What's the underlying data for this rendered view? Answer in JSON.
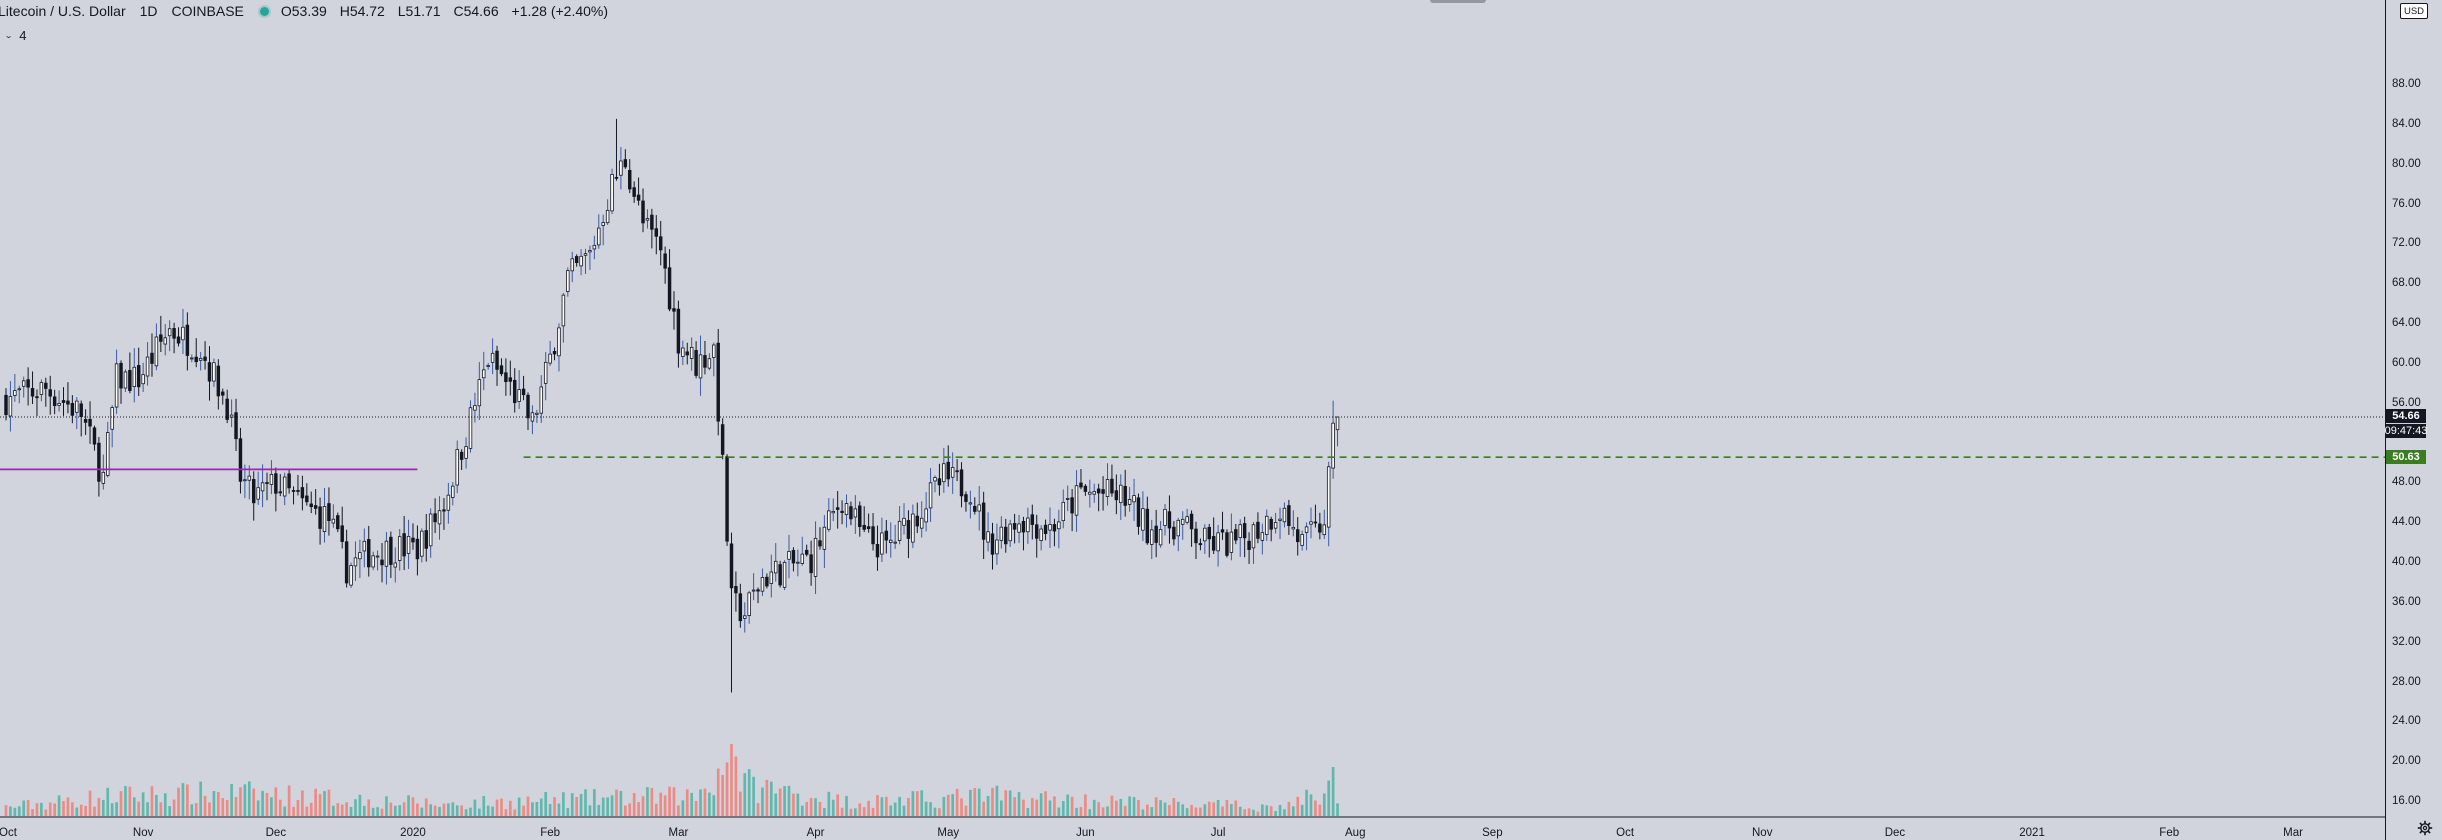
{
  "header": {
    "symbol_title": "Litecoin / U.S. Dollar",
    "interval": "1D",
    "exchange": "COINBASE",
    "open": "O53.39",
    "high": "H54.72",
    "low": "L51.71",
    "close": "C54.66",
    "change": "+1.28 (+2.40%)",
    "indicator_count": "4",
    "status_color": "#26a69a"
  },
  "axis": {
    "currency": "USD",
    "price_ticks": [
      "88.00",
      "84.00",
      "80.00",
      "76.00",
      "72.00",
      "68.00",
      "64.00",
      "60.00",
      "56.00",
      "48.00",
      "44.00",
      "40.00",
      "36.00",
      "32.00",
      "28.00",
      "24.00",
      "20.00",
      "16.00"
    ],
    "last_price": "54.66",
    "countdown": "09:47:43",
    "level_price": "50.63",
    "time_labels": [
      "Oct",
      "Nov",
      "Dec",
      "2020",
      "Feb",
      "Mar",
      "Apr",
      "May",
      "Jun",
      "Jul",
      "Aug",
      "Sep",
      "Oct",
      "Nov",
      "Dec",
      "2021",
      "Feb",
      "Mar"
    ]
  },
  "chart_data": {
    "type": "candlestick",
    "symbol": "Litecoin / U.S. Dollar",
    "exchange": "COINBASE",
    "interval": "1D",
    "ylim": [
      14,
      90
    ],
    "y_scale": "linear",
    "x_range": [
      "2019-10-01",
      "2021-03-15"
    ],
    "grid": false,
    "colors": {
      "up": "#ffffff",
      "down": "#131722",
      "wick_up": "#3b5ba5",
      "wick_down": "#131722",
      "volume_up": "#5fb8ad",
      "volume_down": "#ec8a84",
      "support_line": "#3a7d1f",
      "level_line": "#9c27b0",
      "last_price_line": "#131722"
    },
    "last_price_line": 54.66,
    "last_ohlc": {
      "open": 53.39,
      "high": 54.72,
      "low": 51.71,
      "close": 54.66,
      "change": 1.28,
      "change_pct": 2.4
    },
    "horizontal_levels": [
      {
        "price": 50.63,
        "style": "dashed",
        "color": "#3a7d1f",
        "from": "2020-01-26",
        "to": "right-edge"
      },
      {
        "price": 49.4,
        "style": "solid",
        "color": "#9c27b0",
        "from": "left-edge",
        "to": "2020-01-02"
      }
    ],
    "close_path": [
      [
        "2019-10-01",
        56.5
      ],
      [
        "2019-10-10",
        57.5
      ],
      [
        "2019-10-18",
        55.0
      ],
      [
        "2019-10-23",
        48.5
      ],
      [
        "2019-10-26",
        58.5
      ],
      [
        "2019-10-31",
        58.5
      ],
      [
        "2019-11-07",
        63.5
      ],
      [
        "2019-11-14",
        61.5
      ],
      [
        "2019-11-20",
        56.0
      ],
      [
        "2019-11-23",
        48.5
      ],
      [
        "2019-11-26",
        46.5
      ],
      [
        "2019-12-01",
        48.0
      ],
      [
        "2019-12-08",
        45.5
      ],
      [
        "2019-12-13",
        44.5
      ],
      [
        "2019-12-17",
        39.5
      ],
      [
        "2019-12-22",
        41.0
      ],
      [
        "2019-12-28",
        41.5
      ],
      [
        "2020-01-02",
        41.5
      ],
      [
        "2020-01-08",
        46.0
      ],
      [
        "2020-01-13",
        53.0
      ],
      [
        "2020-01-18",
        60.5
      ],
      [
        "2020-01-24",
        57.0
      ],
      [
        "2020-01-28",
        54.0
      ],
      [
        "2020-02-01",
        60.5
      ],
      [
        "2020-02-05",
        68.5
      ],
      [
        "2020-02-10",
        71.0
      ],
      [
        "2020-02-15",
        78.0
      ],
      [
        "2020-02-18",
        80.5
      ],
      [
        "2020-02-22",
        74.0
      ],
      [
        "2020-02-26",
        71.5
      ],
      [
        "2020-03-01",
        62.5
      ],
      [
        "2020-03-05",
        60.0
      ],
      [
        "2020-03-09",
        61.5
      ],
      [
        "2020-03-11",
        49.5
      ],
      [
        "2020-03-13",
        36.0
      ],
      [
        "2020-03-16",
        35.0
      ],
      [
        "2020-03-20",
        38.5
      ],
      [
        "2020-03-25",
        39.5
      ],
      [
        "2020-03-31",
        40.5
      ],
      [
        "2020-04-07",
        46.5
      ],
      [
        "2020-04-12",
        42.5
      ],
      [
        "2020-04-17",
        41.5
      ],
      [
        "2020-04-24",
        45.0
      ],
      [
        "2020-04-30",
        48.5
      ],
      [
        "2020-05-06",
        47.5
      ],
      [
        "2020-05-10",
        42.0
      ],
      [
        "2020-05-17",
        44.5
      ],
      [
        "2020-05-24",
        43.5
      ],
      [
        "2020-05-31",
        47.0
      ],
      [
        "2020-06-05",
        47.0
      ],
      [
        "2020-06-10",
        46.5
      ],
      [
        "2020-06-15",
        43.5
      ],
      [
        "2020-06-22",
        44.0
      ],
      [
        "2020-06-28",
        42.0
      ],
      [
        "2020-07-05",
        42.0
      ],
      [
        "2020-07-10",
        43.5
      ],
      [
        "2020-07-15",
        45.5
      ],
      [
        "2020-07-20",
        42.0
      ],
      [
        "2020-07-23",
        43.0
      ],
      [
        "2020-07-25",
        44.5
      ],
      [
        "2020-07-27",
        52.5
      ],
      [
        "2020-07-28",
        54.66
      ]
    ],
    "volume_range": [
      0,
      100
    ],
    "volume_path": [
      [
        "2019-10-01",
        15
      ],
      [
        "2019-10-26",
        35
      ],
      [
        "2019-11-23",
        40
      ],
      [
        "2020-01-08",
        20
      ],
      [
        "2020-02-10",
        30
      ],
      [
        "2020-03-05",
        35
      ],
      [
        "2020-03-13",
        100
      ],
      [
        "2020-03-16",
        55
      ],
      [
        "2020-04-07",
        25
      ],
      [
        "2020-04-30",
        30
      ],
      [
        "2020-05-10",
        35
      ],
      [
        "2020-06-05",
        25
      ],
      [
        "2020-07-15",
        15
      ],
      [
        "2020-07-27",
        45
      ],
      [
        "2020-07-28",
        30
      ]
    ]
  }
}
